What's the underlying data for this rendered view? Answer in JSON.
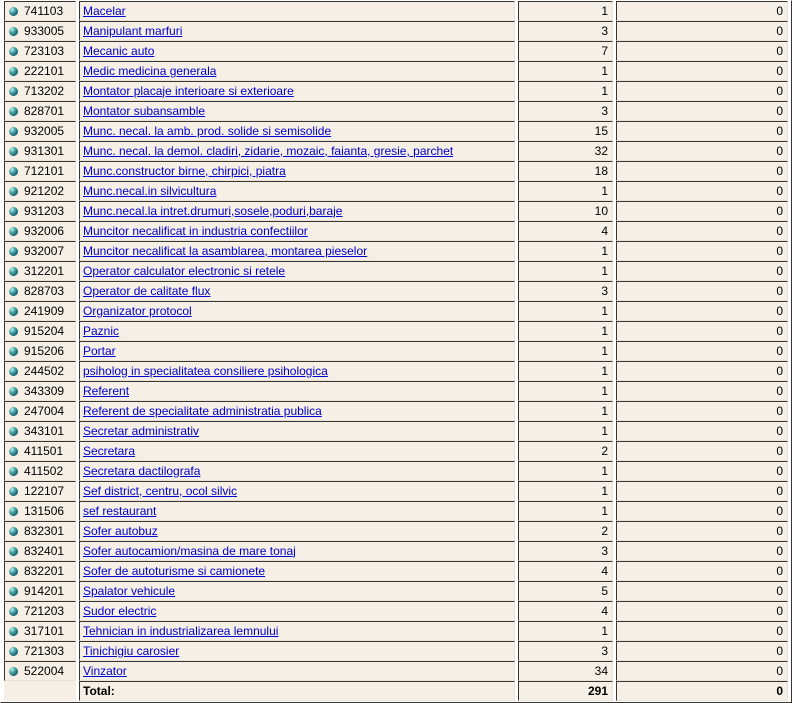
{
  "colors": {
    "cell_background": "#f5efe5",
    "border_dark": "#3a342e",
    "border_light": "#e7e3d9",
    "link_blue": "#0000cc",
    "bullet_teal": "#15606b",
    "page_background": "#ffffff"
  },
  "icons": {
    "row_marker": "sphere-bullet-icon"
  },
  "table": {
    "rows": [
      {
        "code": "741103",
        "name": "Macelar",
        "count1": "1",
        "count2": "0"
      },
      {
        "code": "933005",
        "name": "Manipulant marfuri",
        "count1": "3",
        "count2": "0"
      },
      {
        "code": "723103",
        "name": "Mecanic auto",
        "count1": "7",
        "count2": "0"
      },
      {
        "code": "222101",
        "name": "Medic medicina generala",
        "count1": "1",
        "count2": "0"
      },
      {
        "code": "713202",
        "name": "Montator placaje interioare si exterioare",
        "count1": "1",
        "count2": "0"
      },
      {
        "code": "828701",
        "name": "Montator subansamble",
        "count1": "3",
        "count2": "0"
      },
      {
        "code": "932005",
        "name": "Munc. necal. la amb. prod. solide si semisolide",
        "count1": "15",
        "count2": "0"
      },
      {
        "code": "931301",
        "name": "Munc. necal. la demol. cladiri, zidarie, mozaic, faianta, gresie, parchet",
        "count1": "32",
        "count2": "0"
      },
      {
        "code": "712101",
        "name": "Munc.constructor birne, chirpici, piatra",
        "count1": "18",
        "count2": "0"
      },
      {
        "code": "921202",
        "name": "Munc.necal.in silvicultura",
        "count1": "1",
        "count2": "0"
      },
      {
        "code": "931203",
        "name": "Munc.necal.la intret.drumuri,sosele,poduri,baraje",
        "count1": "10",
        "count2": "0"
      },
      {
        "code": "932006",
        "name": "Muncitor necalificat in industria confectiilor",
        "count1": "4",
        "count2": "0"
      },
      {
        "code": "932007",
        "name": "Muncitor necalificat la asamblarea, montarea pieselor",
        "count1": "1",
        "count2": "0"
      },
      {
        "code": "312201",
        "name": "Operator calculator electronic si retele",
        "count1": "1",
        "count2": "0"
      },
      {
        "code": "828703",
        "name": "Operator de calitate flux",
        "count1": "3",
        "count2": "0"
      },
      {
        "code": "241909",
        "name": "Organizator protocol",
        "count1": "1",
        "count2": "0"
      },
      {
        "code": "915204",
        "name": "Paznic",
        "count1": "1",
        "count2": "0"
      },
      {
        "code": "915206",
        "name": "Portar",
        "count1": "1",
        "count2": "0"
      },
      {
        "code": "244502",
        "name": "psiholog in specialitatea consiliere psihologica",
        "count1": "1",
        "count2": "0"
      },
      {
        "code": "343309",
        "name": "Referent",
        "count1": "1",
        "count2": "0"
      },
      {
        "code": "247004",
        "name": "Referent de specialitate administratia publica",
        "count1": "1",
        "count2": "0"
      },
      {
        "code": "343101",
        "name": "Secretar administrativ",
        "count1": "1",
        "count2": "0"
      },
      {
        "code": "411501",
        "name": "Secretara",
        "count1": "2",
        "count2": "0"
      },
      {
        "code": "411502",
        "name": "Secretara dactilografa",
        "count1": "1",
        "count2": "0"
      },
      {
        "code": "122107",
        "name": "Sef district, centru, ocol silvic",
        "count1": "1",
        "count2": "0"
      },
      {
        "code": "131506",
        "name": "sef restaurant",
        "count1": "1",
        "count2": "0"
      },
      {
        "code": "832301",
        "name": "Sofer autobuz",
        "count1": "2",
        "count2": "0"
      },
      {
        "code": "832401",
        "name": "Sofer autocamion/masina de mare tonaj",
        "count1": "3",
        "count2": "0"
      },
      {
        "code": "832201",
        "name": "Sofer de autoturisme si camionete",
        "count1": "4",
        "count2": "0"
      },
      {
        "code": "914201",
        "name": "Spalator vehicule",
        "count1": "5",
        "count2": "0"
      },
      {
        "code": "721203",
        "name": "Sudor electric",
        "count1": "4",
        "count2": "0"
      },
      {
        "code": "317101",
        "name": "Tehnician in industrializarea lemnului",
        "count1": "1",
        "count2": "0"
      },
      {
        "code": "721303",
        "name": "Tinichigiu carosier",
        "count1": "3",
        "count2": "0"
      },
      {
        "code": "522004",
        "name": "Vinzator",
        "count1": "34",
        "count2": "0"
      }
    ],
    "total": {
      "label": "Total:",
      "count1": "291",
      "count2": "0"
    }
  }
}
